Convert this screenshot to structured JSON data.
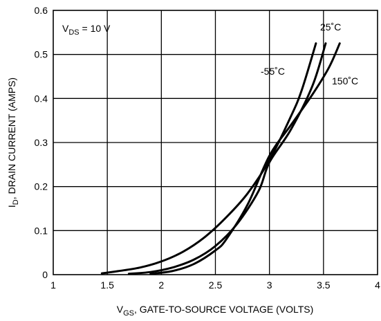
{
  "chart_data": {
    "type": "line",
    "x_ticks": [
      "1",
      "1.5",
      "2",
      "2.5",
      "3",
      "3.5",
      "4"
    ],
    "y_ticks": [
      "0",
      "0.1",
      "0.2",
      "0.3",
      "0.4",
      "0.5",
      "0.6"
    ],
    "xlim": [
      1,
      4
    ],
    "ylim": [
      0,
      0.6
    ],
    "grid": true,
    "xlabel": {
      "prefix": "V",
      "sub": "GS",
      "suffix": ", GATE-TO-SOURCE VOLTAGE (VOLTS)"
    },
    "ylabel": {
      "prefix": "I",
      "sub": "D",
      "suffix": ", DRAIN CURRENT (AMPS)"
    },
    "annotations": {
      "condition": {
        "prefix": "V",
        "sub": "DS",
        "suffix": " = 10 V"
      },
      "series_labels": [
        "-55˚C",
        "25˚C",
        "150˚C"
      ]
    },
    "series": [
      {
        "name": "-55˚C",
        "x": [
          1.45,
          1.6,
          1.8,
          2.0,
          2.2,
          2.4,
          2.6,
          2.8,
          3.0,
          3.2,
          3.3,
          3.43
        ],
        "y": [
          0.003,
          0.008,
          0.016,
          0.03,
          0.052,
          0.085,
          0.13,
          0.185,
          0.26,
          0.36,
          0.42,
          0.525
        ]
      },
      {
        "name": "25˚C",
        "x": [
          1.7,
          1.9,
          2.1,
          2.3,
          2.5,
          2.7,
          2.9,
          3.0,
          3.2,
          3.4,
          3.52
        ],
        "y": [
          0.002,
          0.006,
          0.016,
          0.034,
          0.065,
          0.115,
          0.19,
          0.255,
          0.33,
          0.43,
          0.525
        ]
      },
      {
        "name": "150˚C",
        "x": [
          1.9,
          2.1,
          2.3,
          2.5,
          2.6,
          2.8,
          3.0,
          3.2,
          3.4,
          3.55,
          3.65
        ],
        "y": [
          0.002,
          0.008,
          0.024,
          0.055,
          0.08,
          0.16,
          0.27,
          0.34,
          0.41,
          0.47,
          0.525
        ]
      }
    ]
  }
}
